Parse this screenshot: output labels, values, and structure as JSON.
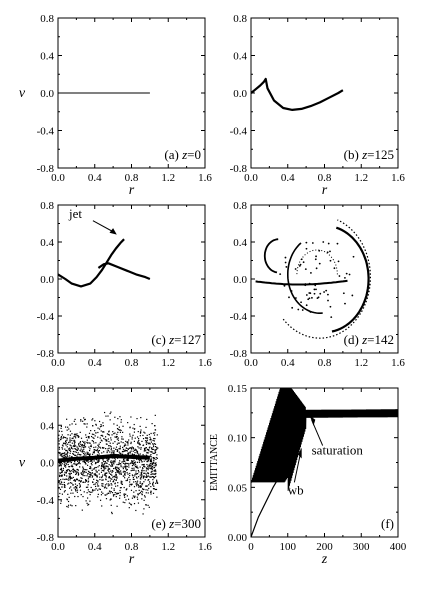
{
  "figure": {
    "panels": [
      {
        "id": "a",
        "caption_letter": "(a)",
        "caption_var": "z",
        "caption_val": "=0",
        "xlabel": "r",
        "ylabel": "v",
        "xticks": [
          "0.0",
          "0.4",
          "0.8",
          "1.2",
          "1.6"
        ],
        "yticks": [
          "0.8",
          "0.4",
          "0.0",
          "-0.4",
          "-0.8"
        ]
      },
      {
        "id": "b",
        "caption_letter": "(b)",
        "caption_var": "z",
        "caption_val": "=125",
        "xlabel": "r",
        "ylabel": "",
        "xticks": [
          "0.0",
          "0.4",
          "0.8",
          "1.2",
          "1.6"
        ],
        "yticks": [
          "0.8",
          "0.4",
          "0.0",
          "-0.4",
          "-0.8"
        ]
      },
      {
        "id": "c",
        "caption_letter": "(c)",
        "caption_var": "z",
        "caption_val": "=127",
        "xlabel": "",
        "ylabel": "",
        "xticks": [
          "0.0",
          "0.4",
          "0.8",
          "1.2",
          "1.6"
        ],
        "yticks": [
          "0.8",
          "0.4",
          "0.0",
          "-0.4",
          "-0.8"
        ],
        "annotation": "jet"
      },
      {
        "id": "d",
        "caption_letter": "(d)",
        "caption_var": "z",
        "caption_val": "=142",
        "xlabel": "",
        "ylabel": "",
        "xticks": [
          "0.0",
          "0.4",
          "0.8",
          "1.2",
          "1.6"
        ],
        "yticks": [
          "0.8",
          "0.4",
          "0.0",
          "-0.4",
          "-0.8"
        ]
      },
      {
        "id": "e",
        "caption_letter": "(e)",
        "caption_var": "z",
        "caption_val": "=300",
        "xlabel": "r",
        "ylabel": "v",
        "xticks": [
          "0.0",
          "0.4",
          "0.8",
          "1.2",
          "1.6"
        ],
        "yticks": [
          "0.8",
          "0.4",
          "0.0",
          "-0.4",
          "-0.8"
        ]
      },
      {
        "id": "f",
        "caption_letter": "(f)",
        "caption_var": "",
        "caption_val": "",
        "xlabel": "z",
        "ylabel": "EMITTANCE",
        "xticks": [
          "0",
          "100",
          "200",
          "300",
          "400"
        ],
        "yticks": [
          "0.15",
          "0.10",
          "0.05",
          "0.00"
        ],
        "annotations": [
          "saturation",
          "wb"
        ]
      }
    ]
  },
  "chart_data": [
    {
      "panel": "a",
      "type": "line",
      "xlim": [
        0.0,
        1.6
      ],
      "ylim": [
        -0.8,
        0.8
      ],
      "series": [
        {
          "x": [
            0.0,
            1.0
          ],
          "y": [
            0.0,
            0.0
          ]
        }
      ]
    },
    {
      "panel": "b",
      "type": "line",
      "xlim": [
        0.0,
        1.6
      ],
      "ylim": [
        -0.8,
        0.8
      ],
      "series": [
        {
          "x": [
            0.0,
            0.05,
            0.1,
            0.14,
            0.16,
            0.18,
            0.25,
            0.35,
            0.45,
            0.55,
            0.65,
            0.75,
            0.85,
            0.95,
            1.0
          ],
          "y": [
            0.0,
            0.04,
            0.08,
            0.12,
            0.15,
            0.05,
            -0.08,
            -0.16,
            -0.18,
            -0.17,
            -0.14,
            -0.1,
            -0.05,
            0.0,
            0.03
          ]
        }
      ]
    },
    {
      "panel": "c",
      "type": "line",
      "xlim": [
        0.0,
        1.6
      ],
      "ylim": [
        -0.8,
        0.8
      ],
      "series": [
        {
          "x": [
            0.0,
            0.08,
            0.15,
            0.25,
            0.35,
            0.42,
            0.48,
            0.53,
            0.58,
            0.63,
            0.68,
            0.72
          ],
          "y": [
            0.05,
            0.0,
            -0.05,
            -0.08,
            -0.05,
            0.02,
            0.1,
            0.18,
            0.26,
            0.33,
            0.39,
            0.43
          ]
        },
        {
          "x": [
            0.44,
            0.5,
            0.55,
            0.65,
            0.75,
            0.85,
            0.95,
            1.0
          ],
          "y": [
            0.12,
            0.16,
            0.17,
            0.13,
            0.09,
            0.05,
            0.02,
            0.0
          ]
        }
      ]
    },
    {
      "panel": "d",
      "type": "scatter",
      "xlim": [
        0.0,
        1.6
      ],
      "ylim": [
        -0.8,
        0.8
      ]
    },
    {
      "panel": "e",
      "type": "scatter",
      "xlim": [
        0.0,
        1.6
      ],
      "ylim": [
        -0.8,
        0.8
      ],
      "series": [
        {
          "x": [
            0.0,
            0.2,
            0.4,
            0.6,
            0.8,
            1.0
          ],
          "y": [
            0.02,
            0.04,
            0.05,
            0.07,
            0.06,
            0.05
          ]
        }
      ]
    },
    {
      "panel": "f",
      "type": "line",
      "xlim": [
        0,
        400
      ],
      "ylim": [
        0.0,
        0.15
      ],
      "series": [
        {
          "x": [
            0,
            20,
            40,
            60,
            80,
            100,
            110,
            120,
            130,
            140,
            150,
            160,
            170,
            180,
            200,
            250,
            300,
            350,
            400
          ],
          "y": [
            0.0,
            0.04,
            0.065,
            0.08,
            0.09,
            0.095,
            0.1,
            0.103,
            0.105,
            0.11,
            0.13,
            0.127,
            0.125,
            0.124,
            0.124,
            0.125,
            0.125,
            0.126,
            0.126
          ]
        }
      ]
    }
  ]
}
